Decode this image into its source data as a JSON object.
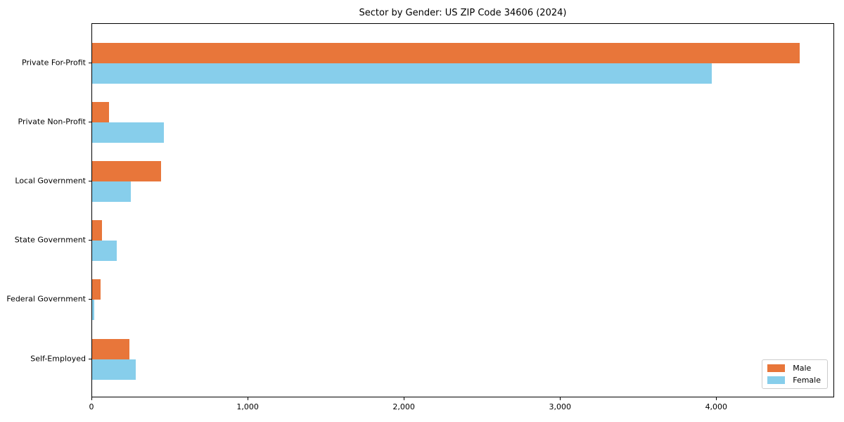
{
  "chart_data": {
    "type": "bar",
    "orientation": "horizontal",
    "title": "Sector by Gender: US ZIP Code 34606 (2024)",
    "xlabel": "",
    "ylabel": "",
    "categories": [
      "Private For-Profit",
      "Private Non-Profit",
      "Local Government",
      "State Government",
      "Federal Government",
      "Self-Employed"
    ],
    "series": [
      {
        "name": "Male",
        "color": "#e8763a",
        "values": [
          4530,
          110,
          440,
          65,
          52,
          238
        ]
      },
      {
        "name": "Female",
        "color": "#87ceeb",
        "values": [
          3965,
          460,
          248,
          158,
          12,
          277
        ]
      }
    ],
    "xlim": [
      0,
      4755
    ],
    "x_ticks": [
      {
        "value": 0,
        "label": "0"
      },
      {
        "value": 1000,
        "label": "1,000"
      },
      {
        "value": 2000,
        "label": "2,000"
      },
      {
        "value": 3000,
        "label": "3,000"
      },
      {
        "value": 4000,
        "label": "4,000"
      }
    ],
    "grid": false,
    "legend": {
      "position": "lower-right",
      "entries": [
        {
          "label": "Male",
          "color": "#e8763a"
        },
        {
          "label": "Female",
          "color": "#87ceeb"
        }
      ]
    }
  }
}
